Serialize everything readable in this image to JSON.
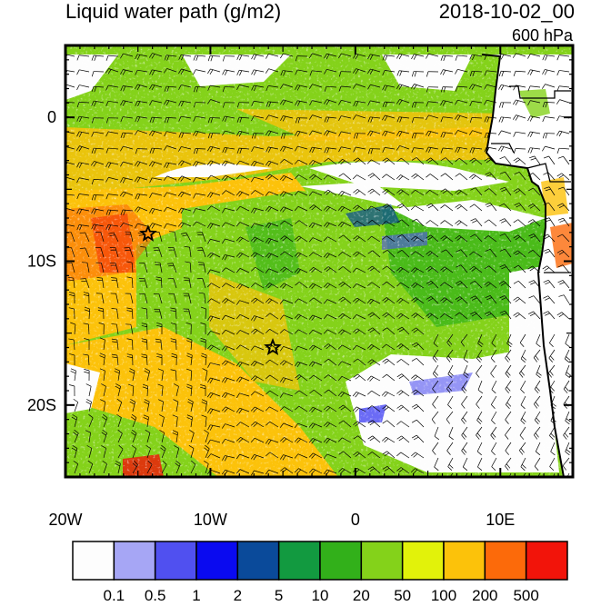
{
  "header": {
    "title_left": "Liquid water path (g/m2)",
    "title_right": "2018-10-02_00",
    "level": "600 hPa"
  },
  "axes": {
    "lon_range": [
      -20,
      15
    ],
    "lat_range": [
      -25,
      5
    ],
    "x_ticks": [
      {
        "value": -20,
        "label": "20W"
      },
      {
        "value": -10,
        "label": "10W"
      },
      {
        "value": 0,
        "label": "0"
      },
      {
        "value": 10,
        "label": "10E"
      }
    ],
    "y_ticks": [
      {
        "value": 0,
        "label": "0"
      },
      {
        "value": -10,
        "label": "10S"
      },
      {
        "value": -20,
        "label": "20S"
      }
    ]
  },
  "colorbar": {
    "colors": [
      "#fdfdfd",
      "#a6a6f5",
      "#5050f0",
      "#0a0af0",
      "#0a4a9a",
      "#129a40",
      "#32b01a",
      "#84d21a",
      "#e2f20a",
      "#fcc20a",
      "#fc6a0a",
      "#f2140a"
    ],
    "labels": [
      "0.1",
      "0.5",
      "1",
      "2",
      "5",
      "10",
      "20",
      "50",
      "100",
      "200",
      "500"
    ]
  },
  "markers": [
    {
      "lon": -14.3,
      "lat": -8.1,
      "symbol": "star"
    },
    {
      "lon": -5.7,
      "lat": -16.0,
      "symbol": "star"
    }
  ]
}
